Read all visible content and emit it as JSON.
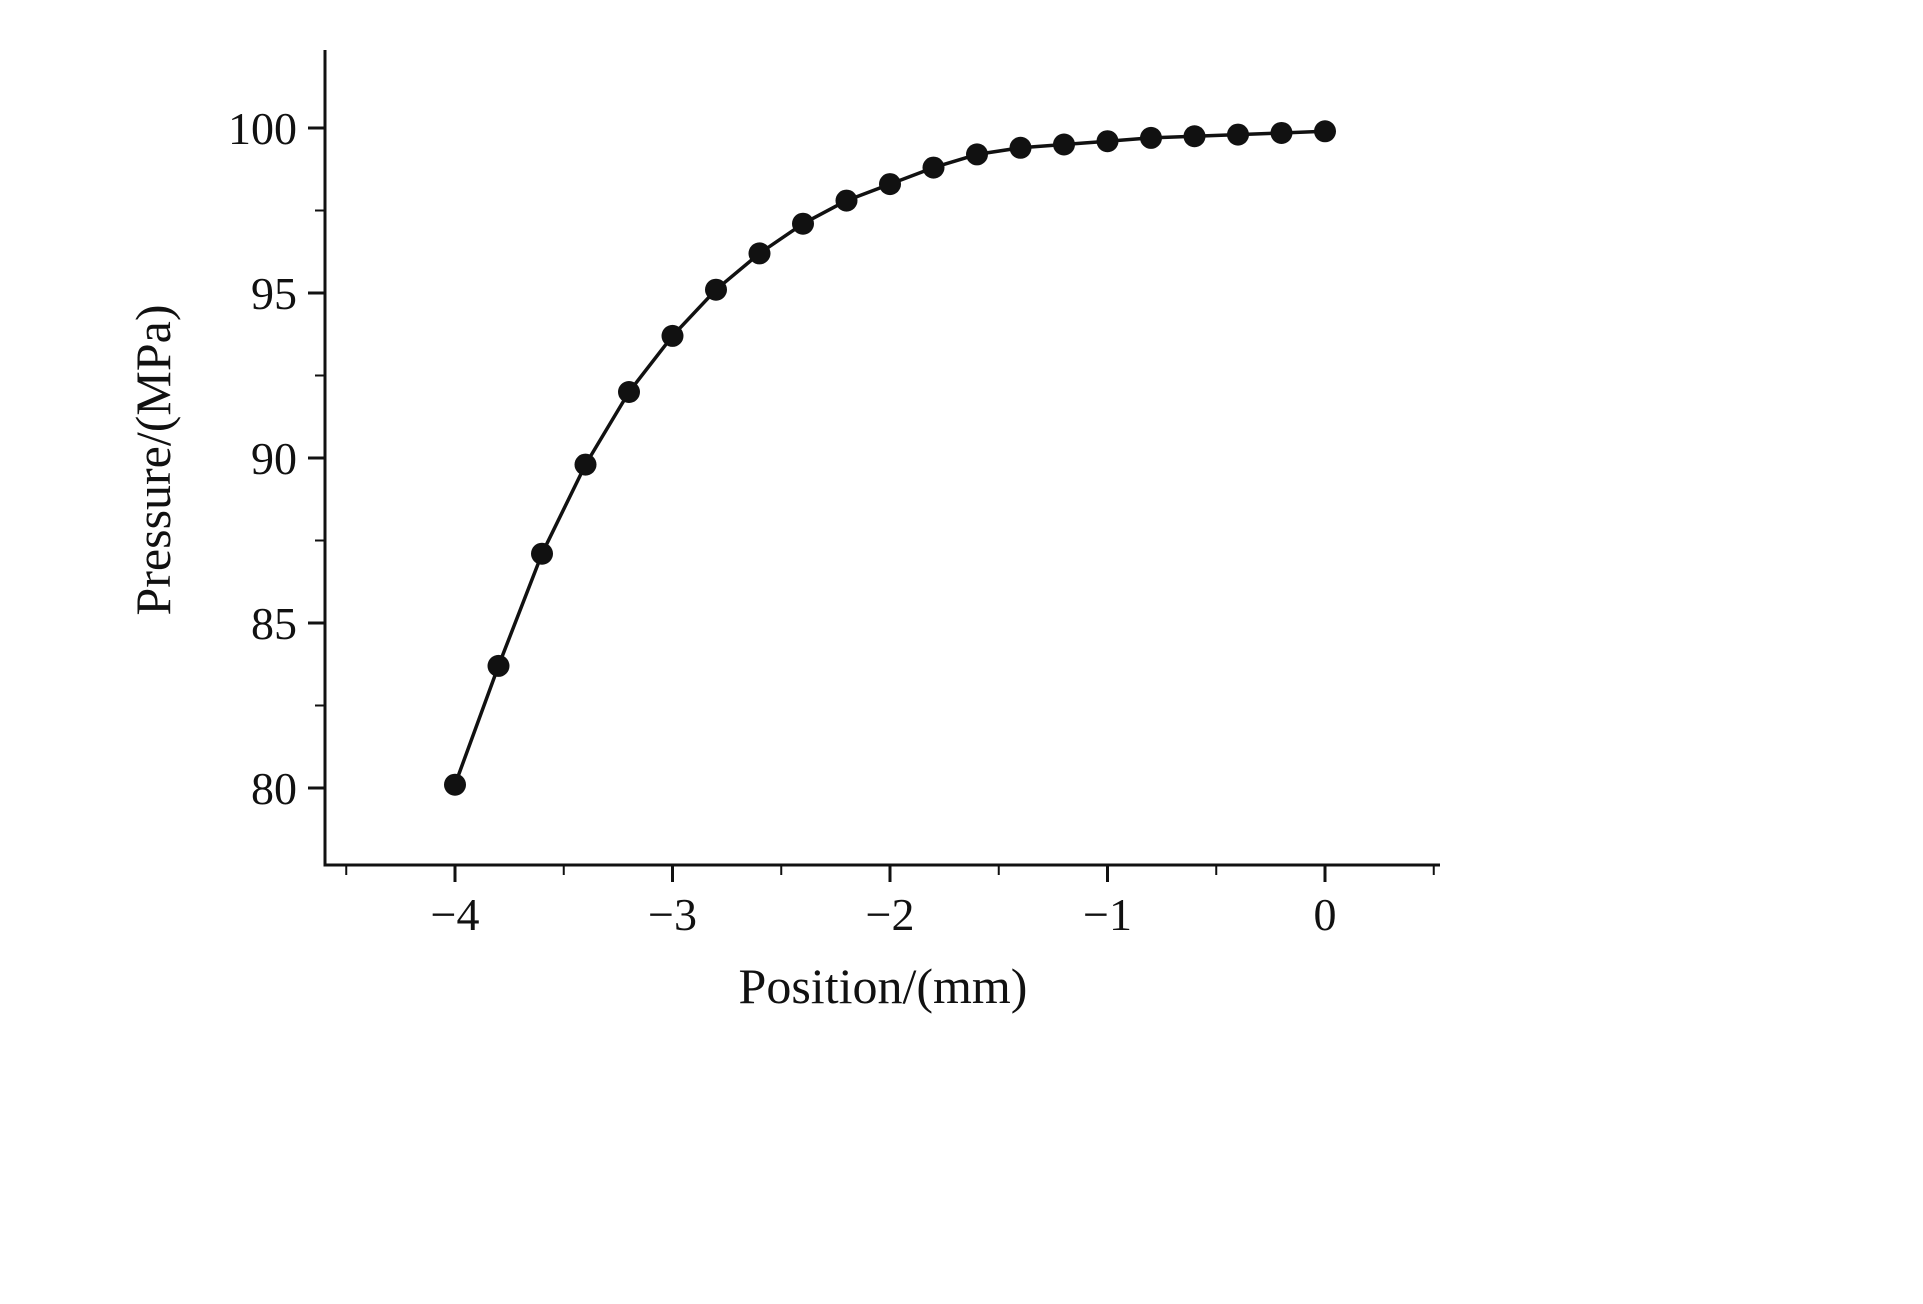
{
  "figure": {
    "background": "#ffffff",
    "line_color": "#111111",
    "marker_color": "#111111"
  },
  "chart_data": {
    "type": "line",
    "title": "",
    "xlabel": "Position/(mm)",
    "ylabel": "Pressure/(MPa)",
    "x": [
      -4.0,
      -3.8,
      -3.6,
      -3.4,
      -3.2,
      -3.0,
      -2.8,
      -2.6,
      -2.4,
      -2.2,
      -2.0,
      -1.8,
      -1.6,
      -1.4,
      -1.2,
      -1.0,
      -0.8,
      -0.6,
      -0.4,
      -0.2,
      0.0
    ],
    "y": [
      80.1,
      83.7,
      87.1,
      89.8,
      92.0,
      93.7,
      95.1,
      96.2,
      97.1,
      97.8,
      98.3,
      98.8,
      99.2,
      99.4,
      99.5,
      99.6,
      99.7,
      99.75,
      99.8,
      99.85,
      99.9
    ],
    "series_name": "Pressure",
    "marker": "filled-circle",
    "grid": false,
    "legend": "none",
    "xlim": [
      -4.6,
      0.53
    ],
    "ylim": [
      77.7,
      102.4
    ],
    "xticks": [
      -4,
      -3,
      -2,
      -1,
      0
    ],
    "xtick_labels": [
      "−4",
      "−3",
      "−2",
      "−1",
      "0"
    ],
    "xminor_step": 0.5,
    "yticks": [
      80,
      85,
      90,
      95,
      100
    ],
    "ytick_labels": [
      "80",
      "85",
      "90",
      "95",
      "100"
    ],
    "yminor_step": 2.5
  }
}
